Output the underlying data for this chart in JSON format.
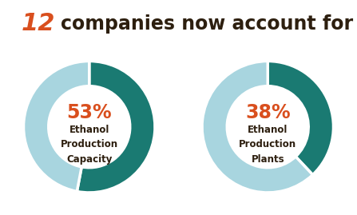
{
  "title_number": "12",
  "title_rest": "companies now account for",
  "title_number_color": "#d94f1e",
  "title_text_color": "#2d1f0f",
  "title_num_fontsize": 22,
  "title_rest_fontsize": 17,
  "charts": [
    {
      "pct": 53,
      "label_pct": "53%",
      "label_line1": "Ethanol",
      "label_line2": "Production",
      "label_line3": "Capacity"
    },
    {
      "pct": 38,
      "label_pct": "38%",
      "label_line1": "Ethanol",
      "label_line2": "Production",
      "label_line3": "Plants"
    }
  ],
  "color_highlight": "#1a7a72",
  "color_remainder": "#a8d5df",
  "pct_color": "#d94f1e",
  "label_color": "#2d1f0f",
  "bg_color": "#ffffff",
  "donut_width": 0.38
}
